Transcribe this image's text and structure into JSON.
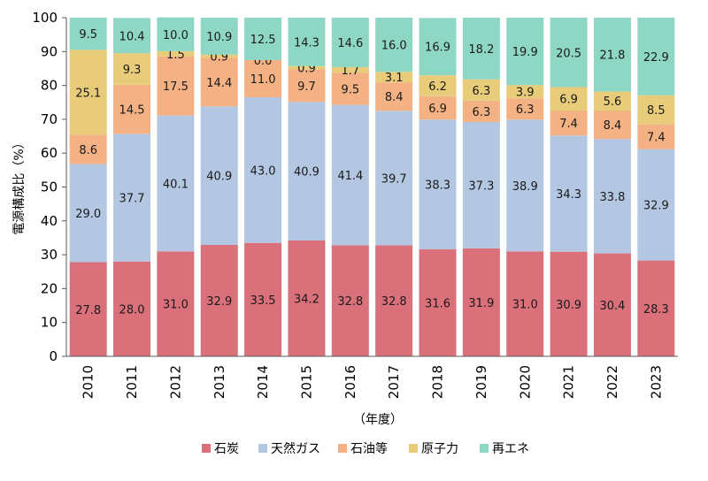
{
  "chart_data": {
    "type": "bar",
    "stacked": true,
    "categories": [
      "2010",
      "2011",
      "2012",
      "2013",
      "2014",
      "2015",
      "2016",
      "2017",
      "2018",
      "2019",
      "2020",
      "2021",
      "2022",
      "2023"
    ],
    "series": [
      {
        "name": "石炭",
        "color": "#d9707a",
        "values": [
          27.8,
          28.0,
          31.0,
          32.9,
          33.5,
          34.2,
          32.8,
          32.8,
          31.6,
          31.9,
          31.0,
          30.9,
          30.4,
          28.3
        ]
      },
      {
        "name": "天然ガス",
        "color": "#b4c7e2",
        "values": [
          29.0,
          37.7,
          40.1,
          40.9,
          43.0,
          40.9,
          41.4,
          39.7,
          38.3,
          37.3,
          38.9,
          34.3,
          33.8,
          32.9
        ]
      },
      {
        "name": "石油等",
        "color": "#f4b183",
        "values": [
          8.6,
          14.5,
          17.5,
          14.4,
          11.0,
          9.7,
          9.5,
          8.4,
          6.9,
          6.3,
          6.3,
          7.4,
          8.4,
          7.4
        ]
      },
      {
        "name": "原子力",
        "color": "#e8cc7a",
        "values": [
          25.1,
          9.3,
          1.5,
          0.9,
          0.0,
          0.9,
          1.7,
          3.1,
          6.2,
          6.3,
          3.9,
          6.9,
          5.6,
          8.5
        ]
      },
      {
        "name": "再エネ",
        "color": "#8ed7c4",
        "values": [
          9.5,
          10.4,
          10.0,
          10.9,
          12.5,
          14.3,
          14.6,
          16.0,
          16.9,
          18.2,
          19.9,
          20.5,
          21.8,
          22.9
        ]
      }
    ],
    "ylabel": "電源構成比（%）",
    "xlabel": "（年度）",
    "ylim": [
      0,
      100
    ],
    "yticks": [
      0,
      10,
      20,
      30,
      40,
      50,
      60,
      70,
      80,
      90,
      100
    ],
    "legend_position": "bottom",
    "grid": false
  }
}
